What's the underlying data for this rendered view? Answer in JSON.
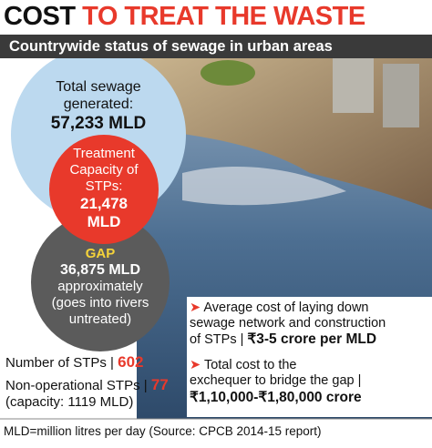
{
  "header": {
    "title_black": "COST",
    "title_red": "TO TREAT THE WASTE",
    "subtitle": "Countrywide status of sewage in urban areas"
  },
  "circles": {
    "total": {
      "label_lines": [
        "Total sewage",
        "generated:"
      ],
      "value": "57,233 MLD"
    },
    "treatment": {
      "label_lines": [
        "Treatment",
        "Capacity of",
        "STPs:"
      ],
      "value_lines": [
        "21,478",
        "MLD"
      ]
    },
    "gap": {
      "label": "GAP",
      "value": "36,875 MLD",
      "note_lines": [
        "approximately",
        "(goes into rivers",
        "untreated)"
      ]
    }
  },
  "stats": [
    {
      "label": "Number of STPs |",
      "value": "602"
    },
    {
      "label": "Non-operational STPs |",
      "value": "77",
      "note": "(capacity: 1119 MLD)"
    }
  ],
  "costs": [
    {
      "lines": [
        "Average cost of laying down",
        "sewage network and construction",
        "of STPs |"
      ],
      "value": "₹3-5 crore per MLD"
    },
    {
      "lines": [
        "Total cost to the",
        "exchequer to bridge the gap |"
      ],
      "value": "₹1,10,000-₹1,80,000 crore"
    }
  ],
  "footer": "MLD=million litres per day (Source: CPCB 2014-15 report)"
}
